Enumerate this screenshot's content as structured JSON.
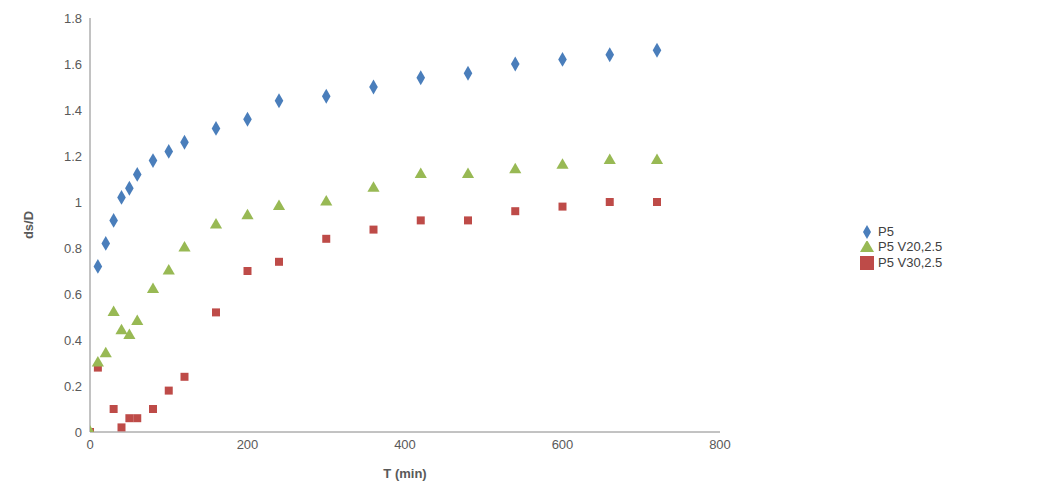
{
  "chart_data": {
    "type": "scatter",
    "x_label": "T (min)",
    "y_label": "ds/D",
    "xlim": [
      0,
      800
    ],
    "xticks": [
      0,
      200,
      400,
      600,
      800
    ],
    "ylim": [
      0,
      1.8
    ],
    "yticks": [
      0,
      0.2,
      0.4,
      0.6,
      0.8,
      1,
      1.2,
      1.4,
      1.6,
      1.8
    ],
    "grid": false,
    "legend": "right",
    "series": [
      {
        "name": "P5",
        "color": "#4a7ebb",
        "marker": "diamond",
        "x": [
          10,
          20,
          30,
          40,
          50,
          60,
          80,
          100,
          120,
          160,
          200,
          240,
          300,
          360,
          420,
          480,
          540,
          600,
          660,
          720
        ],
        "values": [
          0.72,
          0.82,
          0.92,
          1.02,
          1.06,
          1.12,
          1.18,
          1.22,
          1.26,
          1.32,
          1.36,
          1.44,
          1.46,
          1.5,
          1.54,
          1.56,
          1.6,
          1.62,
          1.64,
          1.66
        ]
      },
      {
        "name": "P5 V30,2.5",
        "color": "#be4b48",
        "marker": "square",
        "x": [
          0,
          10,
          30,
          40,
          50,
          60,
          80,
          100,
          120,
          160,
          200,
          240,
          300,
          360,
          420,
          480,
          540,
          600,
          660,
          720
        ],
        "values": [
          0,
          0.28,
          0.1,
          0.02,
          0.06,
          0.06,
          0.1,
          0.18,
          0.24,
          0.52,
          0.7,
          0.74,
          0.84,
          0.88,
          0.92,
          0.92,
          0.96,
          0.98,
          1.0,
          1.0
        ]
      },
      {
        "name": "P5 V20,2.5",
        "color": "#98b954",
        "marker": "triangle",
        "x": [
          0,
          10,
          20,
          30,
          40,
          50,
          60,
          80,
          100,
          120,
          160,
          200,
          240,
          300,
          360,
          420,
          480,
          540,
          600,
          660,
          720
        ],
        "values": [
          0,
          0.3,
          0.34,
          0.52,
          0.44,
          0.42,
          0.48,
          0.62,
          0.7,
          0.8,
          0.9,
          0.94,
          0.98,
          1.0,
          1.06,
          1.12,
          1.12,
          1.14,
          1.16,
          1.18,
          1.18
        ]
      }
    ]
  }
}
